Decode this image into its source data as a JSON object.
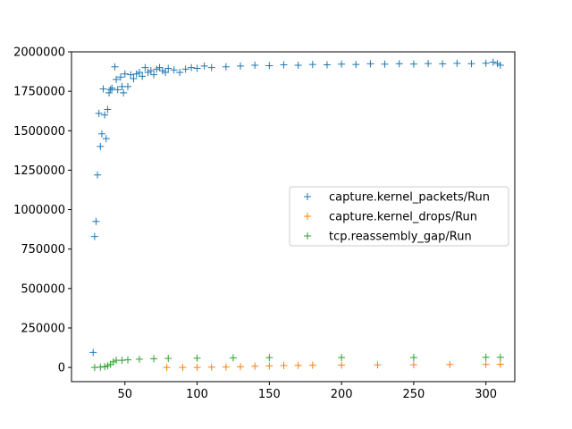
{
  "chart_data": {
    "type": "scatter",
    "marker": "+",
    "title": "",
    "xlabel": "",
    "ylabel": "",
    "xlim": [
      13,
      320
    ],
    "ylim": [
      -90000,
      2000000
    ],
    "xticks": [
      50,
      100,
      150,
      200,
      250,
      300
    ],
    "yticks": [
      0,
      250000,
      500000,
      750000,
      1000000,
      1250000,
      1500000,
      1750000,
      2000000
    ],
    "grid": false,
    "legend_position": "center-right",
    "series": [
      {
        "name": "capture.kernel_packets/Run",
        "color": "#1f77b4",
        "points": [
          [
            28,
            95000
          ],
          [
            29,
            830000
          ],
          [
            30,
            925000
          ],
          [
            31,
            1220000
          ],
          [
            32,
            1610000
          ],
          [
            33,
            1400000
          ],
          [
            34,
            1480000
          ],
          [
            35,
            1765000
          ],
          [
            36,
            1600000
          ],
          [
            37,
            1450000
          ],
          [
            38,
            1635000
          ],
          [
            39,
            1740000
          ],
          [
            40,
            1760000
          ],
          [
            41,
            1770000
          ],
          [
            43,
            1905000
          ],
          [
            44,
            1825000
          ],
          [
            45,
            1760000
          ],
          [
            47,
            1840000
          ],
          [
            48,
            1780000
          ],
          [
            49,
            1740000
          ],
          [
            50,
            1860000
          ],
          [
            52,
            1780000
          ],
          [
            54,
            1855000
          ],
          [
            56,
            1830000
          ],
          [
            58,
            1860000
          ],
          [
            60,
            1870000
          ],
          [
            62,
            1845000
          ],
          [
            64,
            1900000
          ],
          [
            66,
            1870000
          ],
          [
            68,
            1880000
          ],
          [
            70,
            1855000
          ],
          [
            72,
            1890000
          ],
          [
            74,
            1900000
          ],
          [
            76,
            1880000
          ],
          [
            78,
            1870000
          ],
          [
            80,
            1895000
          ],
          [
            84,
            1885000
          ],
          [
            88,
            1870000
          ],
          [
            92,
            1890000
          ],
          [
            96,
            1900000
          ],
          [
            100,
            1895000
          ],
          [
            105,
            1910000
          ],
          [
            110,
            1900000
          ],
          [
            120,
            1905000
          ],
          [
            130,
            1910000
          ],
          [
            140,
            1915000
          ],
          [
            150,
            1912000
          ],
          [
            160,
            1918000
          ],
          [
            170,
            1915000
          ],
          [
            180,
            1920000
          ],
          [
            190,
            1918000
          ],
          [
            200,
            1922000
          ],
          [
            210,
            1920000
          ],
          [
            220,
            1924000
          ],
          [
            230,
            1922000
          ],
          [
            240,
            1925000
          ],
          [
            250,
            1923000
          ],
          [
            260,
            1926000
          ],
          [
            270,
            1924000
          ],
          [
            280,
            1927000
          ],
          [
            290,
            1925000
          ],
          [
            300,
            1928000
          ],
          [
            305,
            1935000
          ],
          [
            308,
            1926000
          ],
          [
            310,
            1915000
          ]
        ]
      },
      {
        "name": "capture.kernel_drops/Run",
        "color": "#ff7f0e",
        "points": [
          [
            79,
            0
          ],
          [
            90,
            0
          ],
          [
            100,
            0
          ],
          [
            110,
            2000
          ],
          [
            120,
            3000
          ],
          [
            130,
            5000
          ],
          [
            140,
            8000
          ],
          [
            150,
            10000
          ],
          [
            160,
            12000
          ],
          [
            170,
            13000
          ],
          [
            180,
            14000
          ],
          [
            200,
            15000
          ],
          [
            225,
            16000
          ],
          [
            250,
            17000
          ],
          [
            275,
            18000
          ],
          [
            300,
            19000
          ],
          [
            310,
            20000
          ]
        ]
      },
      {
        "name": "tcp.reassembly_gap/Run",
        "color": "#2ca02c",
        "points": [
          [
            29,
            0
          ],
          [
            33,
            2000
          ],
          [
            36,
            5000
          ],
          [
            38,
            10000
          ],
          [
            40,
            20000
          ],
          [
            42,
            35000
          ],
          [
            44,
            45000
          ],
          [
            48,
            45000
          ],
          [
            52,
            48000
          ],
          [
            60,
            52000
          ],
          [
            70,
            55000
          ],
          [
            80,
            57000
          ],
          [
            100,
            59000
          ],
          [
            125,
            61000
          ],
          [
            150,
            62000
          ],
          [
            200,
            63000
          ],
          [
            250,
            63000
          ],
          [
            300,
            64000
          ],
          [
            310,
            64000
          ]
        ]
      }
    ]
  }
}
